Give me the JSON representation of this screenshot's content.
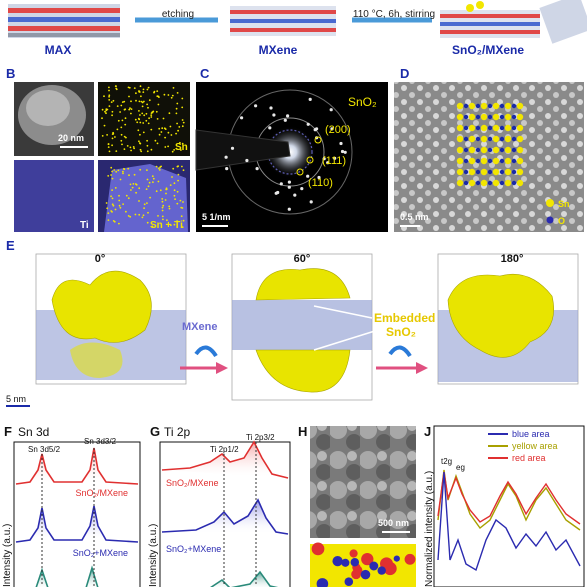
{
  "top": {
    "labels": [
      "MAX",
      "MXene",
      "SnO₂/MXene"
    ],
    "arrow1": "etching",
    "arrow2": "110 °C, 6h, stirring"
  },
  "panels": {
    "B": {
      "letter": "B",
      "scale": "20 nm",
      "sn": "Sn",
      "ti": "Ti",
      "merge": "Sn + Ti"
    },
    "C": {
      "letter": "C",
      "title": "SnO₂",
      "hkl": [
        "(200)",
        "(111)",
        "(110)"
      ],
      "scale": "5 1/nm"
    },
    "D": {
      "letter": "D",
      "scale": "0.5 nm",
      "legend": [
        "Sn",
        "O"
      ]
    },
    "E": {
      "letter": "E",
      "angles": [
        "0°",
        "60°",
        "180°"
      ],
      "mxene": "MXene",
      "embedded": [
        "Embedded",
        "SnO₂"
      ],
      "scale": "5 nm"
    },
    "F": {
      "letter": "F",
      "title": "Sn 3d",
      "peaks": [
        "Sn 3d5/2",
        "Sn 3d3/2"
      ],
      "series": [
        "SnO₂/MXene",
        "SnO₂+MXene"
      ],
      "ylabel": "Intensity (a.u.)"
    },
    "G": {
      "letter": "G",
      "title": "Ti 2p",
      "peaks": [
        "Ti 2p1/2",
        "Ti 2p3/2"
      ],
      "series": [
        "SnO₂/MXene",
        "SnO₂+MXene"
      ],
      "ylabel": "Intensity (a.u.)"
    },
    "H": {
      "letter": "H",
      "scale": "500 nm"
    },
    "J": {
      "letter": "J",
      "legend": [
        "blue area",
        "yellow area",
        "red area"
      ],
      "peaks": [
        "t2g",
        "eg"
      ],
      "ylabel": "Normalized intensity (a.u.)"
    }
  },
  "colors": {
    "sn_yellow": "#f2e600",
    "ti_blue": "#6b6bd8",
    "red_series": "#e03030",
    "blue_series": "#2b2bb0",
    "teal_series": "#2a8a7a",
    "label_blue": "#1a2aa8"
  }
}
